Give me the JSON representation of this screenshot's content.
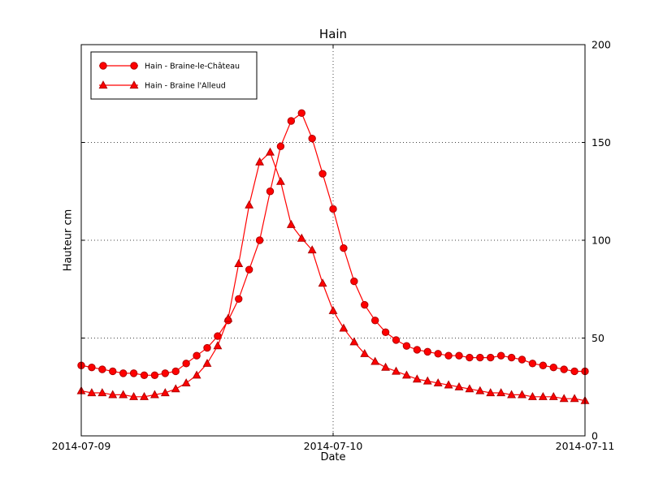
{
  "figure": {
    "background": "#ffffff",
    "axes_color": "#000000",
    "text_color": "#000000"
  },
  "chart_data": {
    "type": "line",
    "title": "Hain",
    "xlabel": "Date",
    "ylabel": "Hauteur cm",
    "x_unit": "hours since 2014-07-09 00:00",
    "x_range_hours": [
      0,
      48
    ],
    "x_tick_positions_hours": [
      0,
      24,
      48
    ],
    "x_tick_labels": [
      "2014-07-09",
      "2014-07-10",
      "2014-07-11"
    ],
    "ylim": [
      0,
      200
    ],
    "y_ticks": [
      0,
      50,
      100,
      150,
      200
    ],
    "y_tick_side": "right",
    "grid": {
      "style": "dotted",
      "color": "#444444",
      "x_lines_hours": [
        24
      ],
      "y_lines": [
        50,
        100,
        150
      ]
    },
    "legend": {
      "position": "upper-left",
      "border_color": "#000000",
      "background": "#ffffff"
    },
    "x_hours": [
      0,
      1,
      2,
      3,
      4,
      5,
      6,
      7,
      8,
      9,
      10,
      11,
      12,
      13,
      14,
      15,
      16,
      17,
      18,
      19,
      20,
      21,
      22,
      23,
      24,
      25,
      26,
      27,
      28,
      29,
      30,
      31,
      32,
      33,
      34,
      35,
      36,
      37,
      38,
      39,
      40,
      41,
      42,
      43,
      44,
      45,
      46,
      47,
      48
    ],
    "series": [
      {
        "name": "Hain - Braine-le-Château",
        "marker": "circle",
        "line_color": "#ff0000",
        "marker_face_color": "#ff0000",
        "marker_edge_color": "#b00000",
        "values": [
          36,
          35,
          34,
          33,
          32,
          32,
          31,
          31,
          32,
          33,
          37,
          41,
          45,
          51,
          59,
          70,
          85,
          100,
          125,
          148,
          161,
          165,
          152,
          134,
          116,
          96,
          79,
          67,
          59,
          53,
          49,
          46,
          44,
          43,
          42,
          41,
          41,
          40,
          40,
          40,
          41,
          40,
          39,
          37,
          36,
          35,
          34,
          33,
          33
        ]
      },
      {
        "name": "Hain - Braine l'Alleud",
        "marker": "triangle",
        "line_color": "#ff0000",
        "marker_face_color": "#ff0000",
        "marker_edge_color": "#b00000",
        "values": [
          23,
          22,
          22,
          21,
          21,
          20,
          20,
          21,
          22,
          24,
          27,
          31,
          37,
          46,
          60,
          88,
          118,
          140,
          145,
          130,
          108,
          101,
          95,
          78,
          64,
          55,
          48,
          42,
          38,
          35,
          33,
          31,
          29,
          28,
          27,
          26,
          25,
          24,
          23,
          22,
          22,
          21,
          21,
          20,
          20,
          20,
          19,
          19,
          18
        ]
      }
    ]
  }
}
